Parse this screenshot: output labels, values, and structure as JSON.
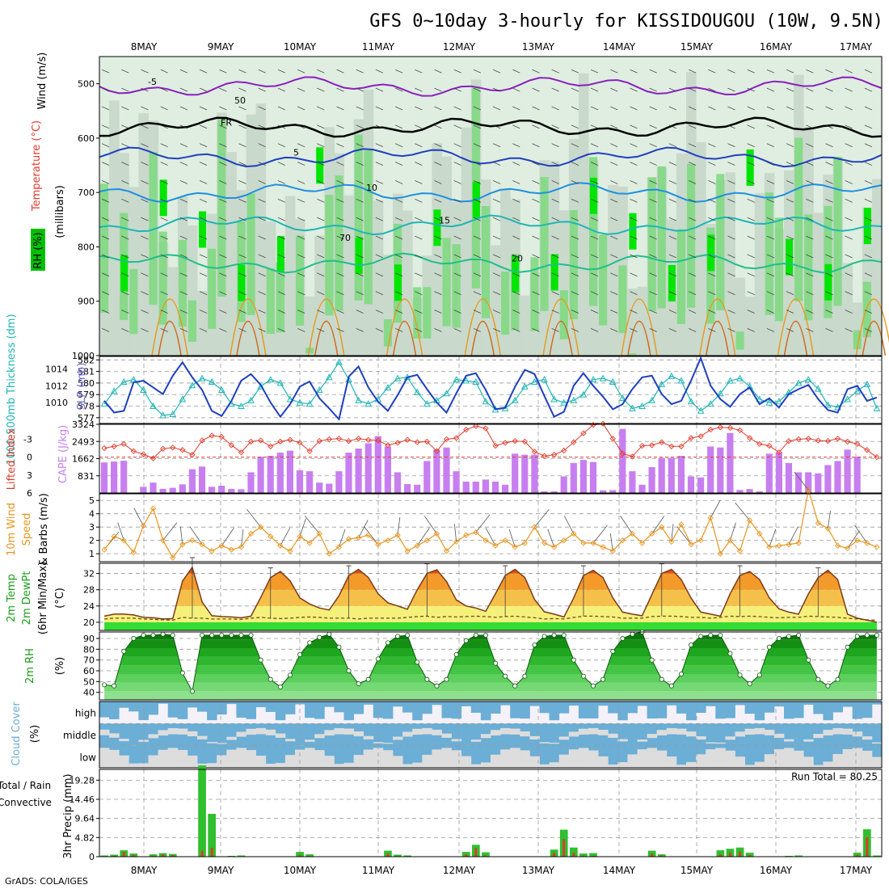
{
  "title": "GFS 0~10day 3-hourly for KISSIDOUGOU (10W, 9.5N)",
  "footer": "GrADS: COLA/IGES",
  "days": [
    "8MAY",
    "9MAY",
    "10MAY",
    "11MAY",
    "12MAY",
    "13MAY",
    "14MAY",
    "15MAY",
    "16MAY",
    "17MAY"
  ],
  "colors": {
    "rh_light": "#dfeee0",
    "rh_mid": "#c9d9cc",
    "rh_green": "#7dd87d",
    "rh_bright": "#00e600",
    "thickness": "#1fb5b5",
    "slp": "#1f3fbf",
    "lifted": "#e03a2a",
    "cape": "#c77ff0",
    "wind": "#e8951f",
    "temp_fill": "#f07f1f",
    "dew_fill": "#f2e860",
    "rh2m": "#1a9e1a",
    "cloud": "#6baed6",
    "cloud_bg": "#dddddd",
    "precip_total": "#2fbf2f",
    "precip_conv": "#e03a2a"
  },
  "chart_data": [
    {
      "type": "heatmap",
      "panel": "upper-air",
      "ylabel_parts": [
        "Wind (m/s)",
        "Temperature (°C)",
        "RH (%)",
        "(millibars)"
      ],
      "y_ticks": [
        "500",
        "600",
        "700",
        "800",
        "900",
        "1000"
      ],
      "ylim": [
        1000,
        450
      ],
      "isotherm_labels": [
        "-5",
        "FR",
        "5",
        "10",
        "15",
        "20"
      ],
      "rh_labels": [
        "50",
        "70"
      ],
      "isotherms": [
        {
          "label": "-5",
          "p": 505,
          "color": "#8a1fbf"
        },
        {
          "label": "FR",
          "p": 580,
          "color": "#000000"
        },
        {
          "label": "5",
          "p": 635,
          "color": "#1f3fbf"
        },
        {
          "label": "10",
          "p": 700,
          "color": "#1f8fe0"
        },
        {
          "label": "15",
          "p": 760,
          "color": "#1fb5b5"
        },
        {
          "label": "20",
          "p": 830,
          "color": "#1fbf8a"
        }
      ]
    },
    {
      "type": "line",
      "panel": "thickness-slp",
      "ylabel_left": "1000-500mb Thickness (dm)",
      "ylabel_right": "SLP (mb)",
      "left_ticks": [
        "582",
        "581",
        "580",
        "579",
        "578",
        "577"
      ],
      "right_ticks": [
        "1014",
        "1012",
        "1010"
      ],
      "ylim_left": [
        576.5,
        582.3
      ],
      "ylim_right": [
        1007.5,
        1015.5
      ],
      "series": [
        {
          "name": "1000-500mb Thickness (dm)",
          "values": [
            578.2,
            579.3,
            580.1,
            580.3,
            579.4,
            578.0,
            577.2,
            577.3,
            578.6,
            579.8,
            580.4,
            580.1,
            579.4,
            578.2,
            578.0,
            578.5,
            579.7,
            580.3,
            580.0,
            578.6,
            578.3,
            578.2,
            579.4,
            580.5,
            581.8,
            580.3,
            578.5,
            578.2,
            578.6,
            579.6,
            580.4,
            580.5,
            579.2,
            578.2,
            578.5,
            579.1,
            580.3,
            580.2,
            580.1,
            578.4,
            577.7,
            577.8,
            578.5,
            579.7,
            580.1,
            580.3,
            578.6,
            578.3,
            578.5,
            579.0,
            580.3,
            580.4,
            580.1,
            578.7,
            577.8,
            578.0,
            578.5,
            579.9,
            580.6,
            580.2,
            578.4,
            577.6,
            578.2,
            579.1,
            580.2,
            580.4,
            579.7,
            578.6,
            578.3,
            578.4,
            579.2,
            580.0,
            580.3,
            579.5,
            578.1,
            577.9,
            578.6,
            579.3,
            579.9,
            577.8
          ]
        },
        {
          "name": "SLP (mb)",
          "values": [
            1010.2,
            1008.8,
            1009.0,
            1012.4,
            1012.6,
            1011.8,
            1011.0,
            1013.2,
            1014.8,
            1013.0,
            1011.5,
            1009.0,
            1008.4,
            1010.2,
            1012.6,
            1013.4,
            1012.1,
            1010.0,
            1008.3,
            1009.8,
            1011.9,
            1012.5,
            1010.5,
            1009.3,
            1008.0,
            1013.1,
            1014.3,
            1011.8,
            1010.1,
            1009.0,
            1010.9,
            1013.0,
            1013.3,
            1011.6,
            1010.0,
            1008.8,
            1011.1,
            1013.2,
            1013.5,
            1011.5,
            1009.2,
            1009.4,
            1011.9,
            1013.9,
            1013.4,
            1010.8,
            1008.3,
            1008.9,
            1012.0,
            1013.5,
            1012.0,
            1010.7,
            1009.2,
            1009.8,
            1011.6,
            1013.0,
            1013.2,
            1011.0,
            1009.8,
            1010.2,
            1012.6,
            1015.3,
            1012.0,
            1010.4,
            1009.5,
            1011.0,
            1011.8,
            1009.8,
            1010.5,
            1009.4,
            1011.0,
            1011.6,
            1012.1,
            1010.4,
            1009.1,
            1008.8,
            1011.6,
            1012.0,
            1010.2,
            1010.6
          ]
        }
      ]
    },
    {
      "type": "bar",
      "panel": "cape-lifted-index",
      "ylabel_left": "Lifted Index",
      "ylabel_right": "CAPE (J/kg)",
      "left_ticks": [
        "-3",
        "0",
        "3",
        "6"
      ],
      "right_ticks": [
        "3324",
        "2493",
        "1662",
        "831"
      ],
      "ylim_cape": [
        0,
        3324
      ],
      "ylim_li": [
        6,
        -5.5
      ],
      "series": [
        {
          "name": "CAPE (J/kg)",
          "values": [
            1480,
            1520,
            1560,
            0,
            300,
            500,
            200,
            250,
            420,
            1150,
            1280,
            300,
            350,
            200,
            180,
            1000,
            1750,
            1800,
            1950,
            2050,
            1100,
            1050,
            500,
            450,
            1050,
            1950,
            2150,
            2400,
            2750,
            2250,
            1000,
            430,
            400,
            1550,
            2100,
            2200,
            1050,
            550,
            550,
            650,
            550,
            400,
            1900,
            1850,
            1850,
            80,
            80,
            800,
            1450,
            1600,
            1500,
            130,
            140,
            3100,
            1050,
            400,
            1250,
            1700,
            1700,
            1800,
            800,
            750,
            2250,
            2200,
            2900,
            150,
            190,
            80,
            1900,
            1950,
            1450,
            1000,
            1000,
            950,
            1350,
            1550,
            2100,
            1750,
            0,
            0
          ]
        },
        {
          "name": "Lifted Index",
          "values": [
            -1.5,
            -1.8,
            -2.2,
            -1.0,
            -0.5,
            0.2,
            -1.4,
            -1.6,
            -1.2,
            -0.4,
            -2.8,
            -3.6,
            -3.4,
            -2.0,
            -0.8,
            -2.6,
            -2.8,
            -1.8,
            -2.6,
            -2.9,
            -2.4,
            -1.0,
            -2.7,
            -3.0,
            -3.1,
            -2.7,
            -3.1,
            -2.9,
            -2.8,
            -2.0,
            -2.4,
            -2.9,
            -2.5,
            -2.6,
            -1.0,
            -3.0,
            -3.2,
            -4.6,
            -5.2,
            -4.8,
            -1.9,
            -2.4,
            -2.7,
            -2.6,
            -0.9,
            -0.2,
            -0.4,
            -1.1,
            -2.5,
            -4.0,
            -5.4,
            -5.6,
            -3.1,
            -0.6,
            -0.1,
            -1.9,
            -2.0,
            -2.5,
            -1.8,
            -1.8,
            -3.2,
            -3.5,
            -4.6,
            -5.0,
            -4.9,
            -4.5,
            -3.2,
            -2.2,
            -1.9,
            -0.8,
            -2.7,
            -3.0,
            -3.1,
            -2.8,
            -2.7,
            -3.1,
            -2.6,
            -2.2,
            -1.2,
            0.0
          ]
        }
      ]
    },
    {
      "type": "line",
      "panel": "10m-wind",
      "ylabel": "10m Wind Speed & Barbs (m/s)",
      "ticks": [
        "1",
        "2",
        "3",
        "4",
        "5"
      ],
      "ylim": [
        0.4,
        5.5
      ],
      "series": [
        {
          "name": "10m Wind Speed",
          "values": [
            1.3,
            2.3,
            2.0,
            1.1,
            3.1,
            4.4,
            2.0,
            0.7,
            1.7,
            2.0,
            1.7,
            1.2,
            1.6,
            1.3,
            1.5,
            2.5,
            3.0,
            2.3,
            1.6,
            1.2,
            2.3,
            1.8,
            2.5,
            1.0,
            1.5,
            2.1,
            2.2,
            2.4,
            1.7,
            2.0,
            2.4,
            1.2,
            1.6,
            2.0,
            2.5,
            1.2,
            1.9,
            2.4,
            2.6,
            2.0,
            1.6,
            2.0,
            1.5,
            1.8,
            3.0,
            1.8,
            1.5,
            2.0,
            2.5,
            1.8,
            1.8,
            1.5,
            1.2,
            2.0,
            2.5,
            1.8,
            2.5,
            3.0,
            1.9,
            3.2,
            1.7,
            2.0,
            3.7,
            1.0,
            2.0,
            1.2,
            3.5,
            2.5,
            1.5,
            1.6,
            1.7,
            1.8,
            5.8,
            3.3,
            2.9,
            1.6,
            1.4,
            2.0,
            1.8,
            1.5
          ]
        }
      ]
    },
    {
      "type": "area",
      "panel": "2m-temp",
      "ylabel": "2m Temp 2m DewPt (6hr Min/Max) (°C)",
      "ticks": [
        "20",
        "24",
        "28",
        "32"
      ],
      "ylim": [
        18,
        34.5
      ],
      "series": [
        {
          "name": "2m Temp",
          "values": [
            21.5,
            22.0,
            22.0,
            21.8,
            21.2,
            21.1,
            20.8,
            20.9,
            30.1,
            33.5,
            25.0,
            21.6,
            21.4,
            21.3,
            21.1,
            21.5,
            26.1,
            31.0,
            32.5,
            30.2,
            26.0,
            24.5,
            23.5,
            23.0,
            26.5,
            31.5,
            33.0,
            31.0,
            27.0,
            24.8,
            24.0,
            23.2,
            28.0,
            32.0,
            32.9,
            30.0,
            25.5,
            24.0,
            23.5,
            22.7,
            27.0,
            31.5,
            33.0,
            31.0,
            25.6,
            22.6,
            22.0,
            21.3,
            26.0,
            31.5,
            32.8,
            31.0,
            26.0,
            22.5,
            22.0,
            21.6,
            26.8,
            32.0,
            33.0,
            30.5,
            26.0,
            22.5,
            22.0,
            21.5,
            27.0,
            31.5,
            32.5,
            30.5,
            26.0,
            23.3,
            22.5,
            22.0,
            27.0,
            31.0,
            32.8,
            30.5,
            22.0,
            21.0,
            20.5,
            20.0
          ]
        },
        {
          "name": "2m DewPt",
          "values": [
            20.8,
            21.0,
            21.0,
            21.0,
            20.8,
            20.7,
            20.6,
            20.5,
            21.2,
            21.0,
            21.0,
            20.8,
            20.8,
            20.8,
            20.7,
            21.0,
            21.2,
            21.0,
            20.9,
            21.0,
            21.2,
            21.3,
            21.2,
            21.0,
            21.0,
            21.0,
            20.8,
            21.0,
            21.0,
            21.0,
            21.0,
            21.2,
            21.4,
            21.5,
            21.2,
            21.4,
            21.3,
            21.4,
            21.5,
            21.4,
            21.2,
            21.4,
            21.5,
            21.3,
            21.1,
            20.8,
            20.9,
            20.8,
            21.2,
            21.5,
            21.5,
            21.4,
            21.3,
            21.0,
            21.0,
            21.0,
            21.4,
            21.5,
            21.5,
            21.4,
            21.2,
            21.2,
            21.0,
            21.2,
            21.5,
            21.4,
            21.5,
            21.4,
            21.2,
            21.1,
            21.2,
            21.2,
            21.5,
            21.4,
            21.3,
            21.2,
            21.0,
            20.8,
            20.6,
            20.5
          ]
        }
      ]
    },
    {
      "type": "area",
      "panel": "2m-rh",
      "ylabel": "2m RH (%)",
      "ticks": [
        "40",
        "50",
        "60",
        "70",
        "80",
        "90"
      ],
      "ylim": [
        33,
        96
      ],
      "series": [
        {
          "name": "2m RH",
          "values": [
            47,
            46,
            78,
            90,
            93,
            93,
            94,
            93,
            58,
            41,
            93,
            93,
            93,
            93,
            93,
            93,
            70,
            52,
            45,
            56,
            75,
            86,
            91,
            94,
            82,
            60,
            48,
            52,
            71,
            86,
            92,
            93,
            68,
            52,
            46,
            52,
            75,
            88,
            93,
            93,
            67,
            55,
            46,
            55,
            84,
            92,
            93,
            93,
            70,
            55,
            46,
            52,
            78,
            90,
            94,
            96,
            70,
            52,
            46,
            57,
            84,
            92,
            93,
            93,
            76,
            56,
            48,
            56,
            82,
            90,
            92,
            93,
            70,
            52,
            46,
            52,
            82,
            92,
            93,
            93
          ]
        }
      ]
    },
    {
      "type": "heatmap",
      "panel": "cloud-cover",
      "ylabel": "Cloud Cover (%)",
      "rows": [
        "high",
        "middle",
        "low"
      ]
    },
    {
      "type": "bar",
      "panel": "precip",
      "ylabel": "3hr Precip (mm)",
      "side_labels": [
        "Total / Rain",
        "Convective"
      ],
      "ticks": [
        "0",
        "4.82",
        "9.64",
        "14.46",
        "19.28"
      ],
      "ylim": [
        0,
        22
      ],
      "annotation": "Run Total = 80.25",
      "series": [
        {
          "name": "Total / Rain",
          "values": [
            0.3,
            0.5,
            1.6,
            0.8,
            0.1,
            0.6,
            0.9,
            0.7,
            0.0,
            0.0,
            23.0,
            10.8,
            0.0,
            0.2,
            0.3,
            0.0,
            0.0,
            0.0,
            0.0,
            0.0,
            1.2,
            0.6,
            0.0,
            0.0,
            0.0,
            0.0,
            0.0,
            0.0,
            0.0,
            1.5,
            0.5,
            0.3,
            0.0,
            0.0,
            0.0,
            0.0,
            0.0,
            1.2,
            3.0,
            1.1,
            0.0,
            0.0,
            0.0,
            0.0,
            0.0,
            0.0,
            1.8,
            6.8,
            2.3,
            0.8,
            0.9,
            0.0,
            0.0,
            0.0,
            0.0,
            0.0,
            1.5,
            0.6,
            0.0,
            0.0,
            0.0,
            0.0,
            0.0,
            1.6,
            2.0,
            2.3,
            1.0,
            0.0,
            0.0,
            0.0,
            0.2,
            0.3,
            0.0,
            0.0,
            0.1,
            0.0,
            0.0,
            1.0,
            6.9,
            0.3
          ]
        },
        {
          "name": "Convective",
          "values": [
            0.1,
            0.2,
            1.2,
            0.4,
            0.0,
            0.2,
            0.6,
            0.4,
            0.0,
            0.0,
            1.5,
            2.2,
            0.0,
            0.0,
            0.1,
            0.0,
            0.0,
            0.0,
            0.0,
            0.0,
            0.4,
            0.2,
            0.0,
            0.0,
            0.0,
            0.0,
            0.0,
            0.0,
            0.0,
            0.8,
            0.1,
            0.1,
            0.0,
            0.0,
            0.0,
            0.0,
            0.0,
            0.5,
            2.2,
            0.3,
            0.0,
            0.0,
            0.0,
            0.0,
            0.0,
            0.0,
            1.0,
            4.4,
            1.0,
            0.2,
            0.2,
            0.0,
            0.0,
            0.0,
            0.0,
            0.0,
            0.8,
            0.3,
            0.0,
            0.0,
            0.0,
            0.0,
            0.0,
            0.6,
            1.0,
            1.3,
            0.4,
            0.0,
            0.0,
            0.0,
            0.1,
            0.1,
            0.0,
            0.0,
            0.0,
            0.0,
            0.0,
            0.4,
            4.9,
            0.1
          ]
        }
      ]
    }
  ]
}
